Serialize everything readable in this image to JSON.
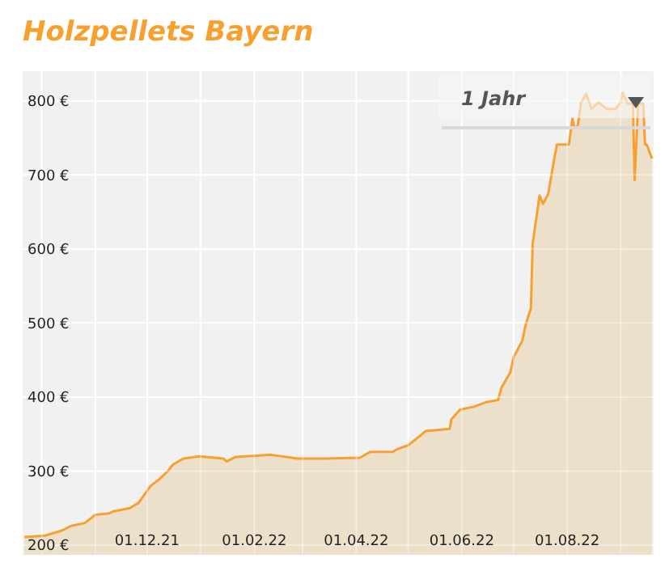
{
  "chart_data": {
    "type": "area",
    "title": "Holzpellets Bayern",
    "annotations": [
      "1 Jahr"
    ],
    "x": [
      "2021-09-21",
      "2021-10-03",
      "2021-10-13",
      "2021-10-18",
      "2021-10-26",
      "2021-11-01",
      "2021-11-09",
      "2021-11-12",
      "2021-11-21",
      "2021-11-26",
      "2021-12-03",
      "2021-12-08",
      "2021-12-13",
      "2021-12-16",
      "2021-12-22",
      "2021-12-31",
      "2022-01-14",
      "2022-01-16",
      "2022-01-21",
      "2022-02-11",
      "2022-02-26",
      "2022-03-14",
      "2022-04-03",
      "2022-04-09",
      "2022-04-22",
      "2022-04-25",
      "2022-05-01",
      "2022-05-07",
      "2022-05-11",
      "2022-05-25",
      "2022-05-26",
      "2022-05-31",
      "2022-06-08",
      "2022-06-15",
      "2022-06-22",
      "2022-06-24",
      "2022-06-29",
      "2022-07-01",
      "2022-07-06",
      "2022-07-08",
      "2022-07-11",
      "2022-07-12",
      "2022-07-16",
      "2022-07-18",
      "2022-07-21",
      "2022-07-24",
      "2022-07-26",
      "2022-08-02",
      "2022-08-04",
      "2022-08-05",
      "2022-08-07",
      "2022-08-09",
      "2022-08-12",
      "2022-08-15",
      "2022-08-19",
      "2022-08-24",
      "2022-08-29",
      "2022-09-01",
      "2022-09-02",
      "2022-09-05",
      "2022-09-08",
      "2022-09-09",
      "2022-09-11",
      "2022-09-14",
      "2022-09-15",
      "2022-09-16",
      "2022-09-19"
    ],
    "series": [
      {
        "color": "#f7a030",
        "values": [
          211,
          213,
          220,
          226,
          230,
          241,
          243,
          246,
          250,
          257,
          280,
          289,
          300,
          309,
          317,
          320,
          317,
          313,
          319,
          322,
          317,
          317,
          318,
          326,
          326,
          330,
          335,
          346,
          354,
          357,
          370,
          383,
          387,
          393,
          396,
          413,
          433,
          454,
          476,
          498,
          520,
          607,
          672,
          661,
          674,
          715,
          741,
          741,
          776,
          765,
          765,
          798,
          809,
          789,
          798,
          789,
          789,
          798,
          811,
          796,
          796,
          693,
          796,
          796,
          741,
          741,
          722
        ]
      }
    ],
    "xlim": [
      "2021-09-20",
      "2022-09-20"
    ],
    "xticks": [
      {
        "value": "2021-10-01",
        "label": null
      },
      {
        "value": "2021-11-01",
        "label": null
      },
      {
        "value": "2021-12-01",
        "label": "01.12.21"
      },
      {
        "value": "2022-01-01",
        "label": null
      },
      {
        "value": "2022-02-01",
        "label": "01.02.22"
      },
      {
        "value": "2022-03-01",
        "label": null
      },
      {
        "value": "2022-04-01",
        "label": "01.04.22"
      },
      {
        "value": "2022-05-01",
        "label": null
      },
      {
        "value": "2022-06-01",
        "label": "01.06.22"
      },
      {
        "value": "2022-07-01",
        "label": null
      },
      {
        "value": "2022-08-01",
        "label": "01.08.22"
      },
      {
        "value": "2022-09-01",
        "label": null
      }
    ],
    "ylim": [
      187,
      840
    ],
    "yticks": [
      {
        "value": 200,
        "label": "200 €"
      },
      {
        "value": 300,
        "label": "300 €"
      },
      {
        "value": 400,
        "label": "400 €"
      },
      {
        "value": 500,
        "label": "500 €"
      },
      {
        "value": 600,
        "label": "600 €"
      },
      {
        "value": 700,
        "label": "700 €"
      },
      {
        "value": 800,
        "label": "800 €"
      }
    ],
    "grid": true
  }
}
